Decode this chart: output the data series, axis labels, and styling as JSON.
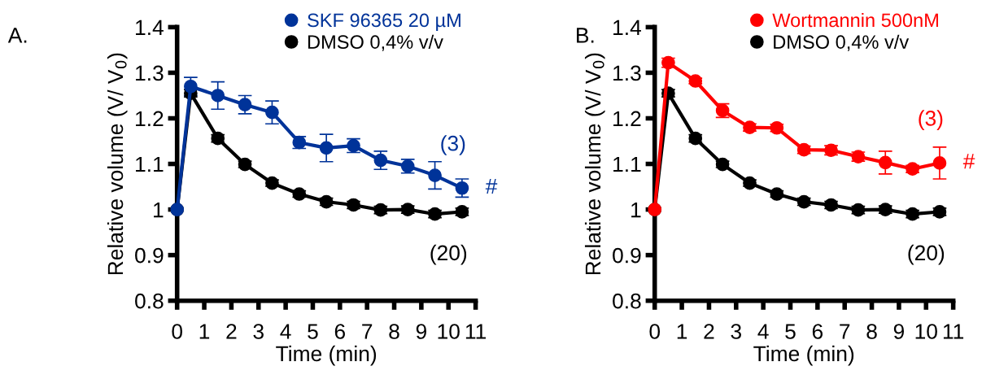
{
  "chart_data": [
    {
      "type": "line",
      "ylabel": "Relative volume (V/ V$_{0}$)",
      "xlabel": "Time (min)",
      "xlim": [
        0,
        11
      ],
      "xticks": [
        0,
        1,
        2,
        3,
        4,
        5,
        6,
        7,
        8,
        9,
        10,
        11
      ],
      "ylim": [
        0.8,
        1.4
      ],
      "yticks": [
        0.8,
        0.9,
        1,
        1.1,
        1.2,
        1.3,
        1.4
      ],
      "grid": false,
      "legend": "top right",
      "marker": "circle",
      "line_style": "solid",
      "x": [
        0,
        0.5,
        1.5,
        2.5,
        3.5,
        4.5,
        5.5,
        6.5,
        7.5,
        8.5,
        9.5,
        10.5
      ],
      "series": [
        {
          "name": "DMSO 0,4% v/v",
          "color": "#000000",
          "values": [
            1,
            1.255,
            1.156,
            1.099,
            1.058,
            1.034,
            1.017,
            1.01,
            0.999,
            1.0,
            0.99,
            0.995
          ],
          "errors": [
            null,
            0.008,
            0.008,
            0.007,
            0.007,
            0.007,
            0.008,
            0.008,
            0.008,
            0.008,
            0.008,
            0.008
          ]
        },
        {
          "name": "SKF 96365 20 µM",
          "color": "#003399",
          "values": [
            1,
            1.27,
            1.25,
            1.23,
            1.213,
            1.147,
            1.135,
            1.14,
            1.108,
            1.095,
            1.075,
            1.047
          ],
          "errors": [
            null,
            0.02,
            0.03,
            0.02,
            0.025,
            0.013,
            0.03,
            0.015,
            0.02,
            0.015,
            0.03,
            0.02
          ]
        }
      ],
      "annotations": [
        "A.",
        "(3)",
        "#",
        "(20)"
      ]
    },
    {
      "type": "line",
      "ylabel": "Relative volume (V/ V$_{0}$)",
      "xlabel": "Time (min)",
      "xlim": [
        0,
        11
      ],
      "xticks": [
        0,
        1,
        2,
        3,
        4,
        5,
        6,
        7,
        8,
        9,
        10,
        11
      ],
      "ylim": [
        0.8,
        1.4
      ],
      "yticks": [
        0.8,
        0.9,
        1,
        1.1,
        1.2,
        1.3,
        1.4
      ],
      "grid": false,
      "legend": "top right",
      "marker": "circle",
      "line_style": "solid",
      "x": [
        0,
        0.5,
        1.5,
        2.5,
        3.5,
        4.5,
        5.5,
        6.5,
        7.5,
        8.5,
        9.5,
        10.5
      ],
      "series": [
        {
          "name": "DMSO 0,4% v/v",
          "color": "#000000",
          "values": [
            1,
            1.255,
            1.156,
            1.099,
            1.058,
            1.034,
            1.017,
            1.01,
            0.999,
            1.0,
            0.99,
            0.995
          ],
          "errors": [
            null,
            0.008,
            0.008,
            0.007,
            0.007,
            0.007,
            0.008,
            0.008,
            0.008,
            0.008,
            0.008,
            0.008
          ]
        },
        {
          "name": "Wortmannin 500nM",
          "color": "#ff0000",
          "values": [
            1,
            1.322,
            1.282,
            1.217,
            1.18,
            1.179,
            1.131,
            1.13,
            1.116,
            1.103,
            1.089,
            1.102
          ],
          "errors": [
            null,
            0.01,
            0.006,
            0.015,
            0.008,
            0.008,
            0.008,
            0.01,
            0.01,
            0.025,
            0.008,
            0.035
          ]
        }
      ],
      "annotations": [
        "B.",
        "(3)",
        "#",
        "(20)"
      ]
    }
  ]
}
